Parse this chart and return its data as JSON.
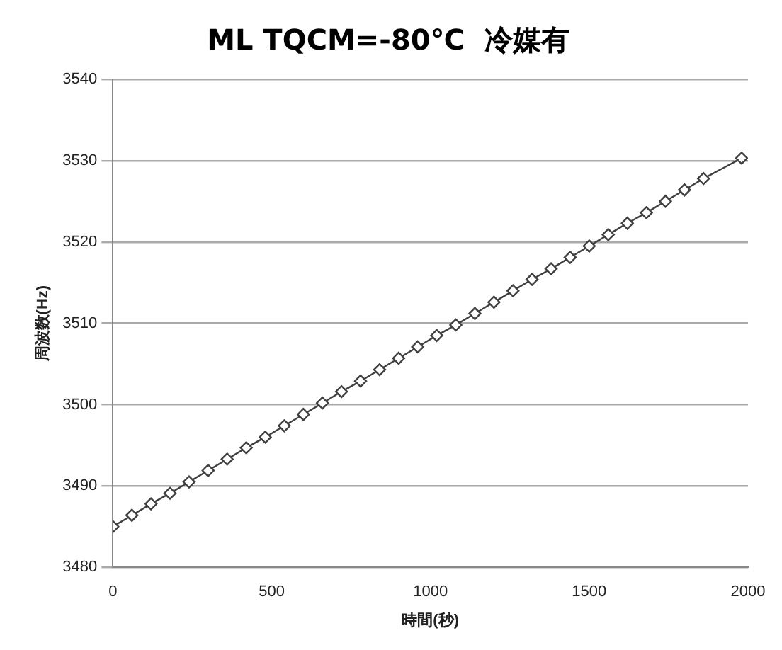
{
  "chart_data": {
    "type": "line",
    "title": "ML TQCM=-80℃  冷媒有",
    "xlabel": "時間(秒)",
    "ylabel": "周波数(Hz)",
    "x": [
      0,
      60,
      120,
      180,
      240,
      300,
      360,
      420,
      480,
      540,
      600,
      660,
      720,
      780,
      840,
      900,
      960,
      1020,
      1080,
      1140,
      1200,
      1260,
      1320,
      1380,
      1440,
      1500,
      1560,
      1620,
      1680,
      1740,
      1800,
      1860,
      1980
    ],
    "series": [
      {
        "color": "#404040",
        "values": [
          3485.0,
          3486.4,
          3487.8,
          3489.1,
          3490.5,
          3491.9,
          3493.3,
          3494.7,
          3496.0,
          3497.4,
          3498.8,
          3500.2,
          3501.6,
          3502.9,
          3504.3,
          3505.7,
          3507.1,
          3508.5,
          3509.8,
          3511.2,
          3512.6,
          3514.0,
          3515.4,
          3516.7,
          3518.1,
          3519.5,
          3520.9,
          3522.3,
          3523.6,
          3525.0,
          3526.4,
          3527.8,
          3530.3
        ]
      }
    ],
    "xlim": [
      0,
      2000
    ],
    "xticks": [
      0,
      500,
      1000,
      1500,
      2000
    ],
    "ylim": [
      3480,
      3540
    ],
    "yticks": [
      3480,
      3490,
      3500,
      3510,
      3520,
      3530,
      3540
    ],
    "grid": "y",
    "marker": "diamond",
    "line_style": "solid"
  }
}
